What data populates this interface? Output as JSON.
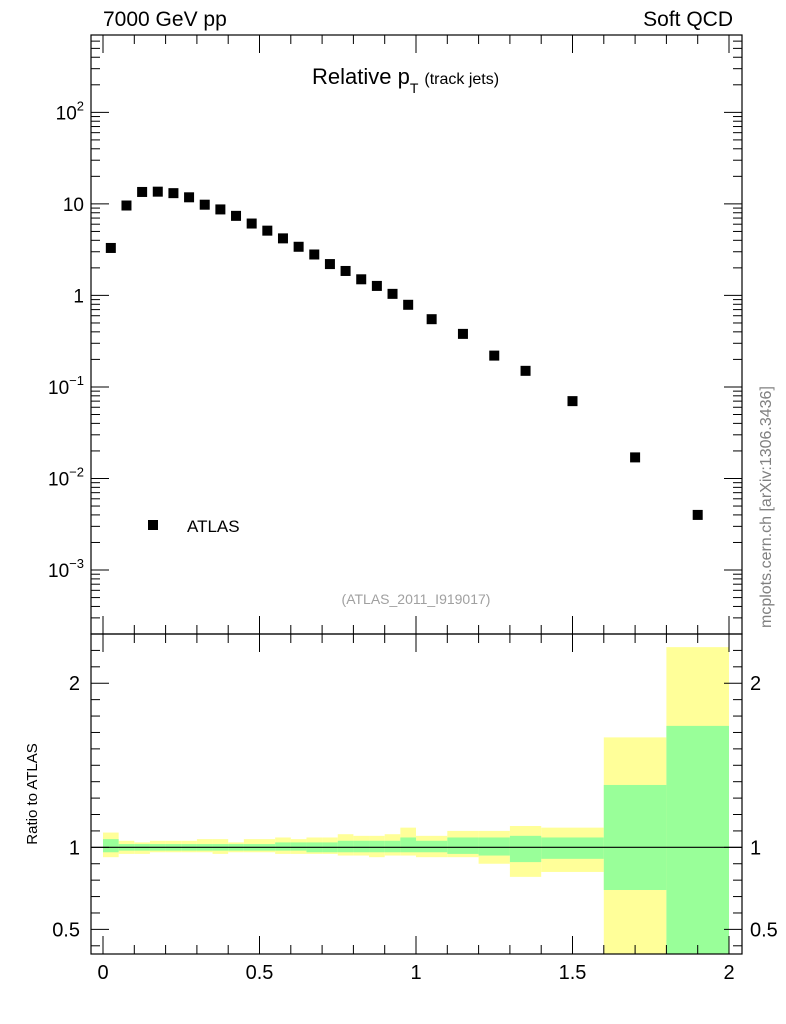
{
  "header": {
    "left": "7000 GeV pp",
    "right": "Soft QCD"
  },
  "watermark": "mcplots.cern.ch [arXiv:1306.3436]",
  "colors": {
    "data_marker": "#000000",
    "band_outer": "#ffff99",
    "band_inner": "#99ff99",
    "ref_line": "#000000"
  },
  "chart_data": [
    {
      "type": "scatter",
      "title_main": "Relative p",
      "title_sub": "T",
      "title_note": "(track jets)",
      "analysis_id": "(ATLAS_2011_I919017)",
      "legend": {
        "label": "ATLAS",
        "placement": "bottom-left"
      },
      "xlim": [
        0,
        2
      ],
      "ylim": [
        0.0002,
        700
      ],
      "log_y": true,
      "y_ticks": [
        {
          "v": 100,
          "base": "10",
          "exp": "2"
        },
        {
          "v": 10,
          "base": "10",
          "exp": ""
        },
        {
          "v": 1,
          "base": "1",
          "exp": ""
        },
        {
          "v": 0.1,
          "base": "10",
          "exp": "−1"
        },
        {
          "v": 0.01,
          "base": "10",
          "exp": "−2"
        },
        {
          "v": 0.001,
          "base": "10",
          "exp": "−3"
        }
      ],
      "series": [
        {
          "name": "ATLAS",
          "x": [
            0.025,
            0.075,
            0.125,
            0.175,
            0.225,
            0.275,
            0.325,
            0.375,
            0.425,
            0.475,
            0.525,
            0.575,
            0.625,
            0.675,
            0.725,
            0.775,
            0.825,
            0.875,
            0.925,
            0.975,
            1.05,
            1.15,
            1.25,
            1.35,
            1.5,
            1.7,
            1.9
          ],
          "y": [
            3.3,
            9.6,
            13.5,
            13.6,
            13.1,
            11.8,
            9.8,
            8.7,
            7.4,
            6.1,
            5.1,
            4.2,
            3.4,
            2.8,
            2.2,
            1.85,
            1.5,
            1.27,
            1.04,
            0.79,
            0.55,
            0.38,
            0.22,
            0.15,
            0.07,
            0.017,
            0.004
          ]
        }
      ]
    },
    {
      "type": "area",
      "ylabel": "Ratio to ATLAS",
      "xlim": [
        0,
        2
      ],
      "ylim": [
        0.35,
        2.3
      ],
      "x_tick_labels": [
        {
          "v": 0,
          "label": "0"
        },
        {
          "v": 0.5,
          "label": "0.5"
        },
        {
          "v": 1,
          "label": "1"
        },
        {
          "v": 1.5,
          "label": "1.5"
        },
        {
          "v": 2,
          "label": "2"
        }
      ],
      "y_tick_labels": [
        {
          "v": 0.5,
          "label": "0.5"
        },
        {
          "v": 1,
          "label": "1"
        },
        {
          "v": 2,
          "label": "2"
        }
      ],
      "reference": 1,
      "bin_edges": [
        0,
        0.05,
        0.1,
        0.15,
        0.2,
        0.25,
        0.3,
        0.35,
        0.4,
        0.45,
        0.5,
        0.55,
        0.6,
        0.65,
        0.7,
        0.75,
        0.8,
        0.85,
        0.9,
        0.95,
        1.0,
        1.1,
        1.2,
        1.3,
        1.4,
        1.6,
        1.8,
        2.0
      ],
      "bands": [
        {
          "name": "outer",
          "low": [
            0.94,
            0.96,
            0.96,
            0.97,
            0.97,
            0.97,
            0.97,
            0.96,
            0.97,
            0.97,
            0.97,
            0.96,
            0.96,
            0.96,
            0.96,
            0.95,
            0.95,
            0.94,
            0.95,
            0.95,
            0.94,
            0.94,
            0.9,
            0.82,
            0.85,
            0.35,
            0.35
          ],
          "high": [
            1.09,
            1.04,
            1.03,
            1.04,
            1.04,
            1.04,
            1.05,
            1.05,
            1.03,
            1.05,
            1.05,
            1.06,
            1.05,
            1.06,
            1.06,
            1.08,
            1.07,
            1.07,
            1.08,
            1.12,
            1.07,
            1.1,
            1.1,
            1.13,
            1.12,
            1.67,
            2.22
          ]
        },
        {
          "name": "inner",
          "low": [
            0.97,
            0.98,
            0.98,
            0.98,
            0.98,
            0.98,
            0.98,
            0.98,
            0.98,
            0.98,
            0.98,
            0.98,
            0.98,
            0.97,
            0.97,
            0.97,
            0.97,
            0.97,
            0.97,
            0.97,
            0.97,
            0.96,
            0.95,
            0.91,
            0.93,
            0.74,
            0.35
          ],
          "high": [
            1.05,
            1.02,
            1.02,
            1.02,
            1.02,
            1.02,
            1.02,
            1.02,
            1.02,
            1.02,
            1.02,
            1.03,
            1.03,
            1.03,
            1.03,
            1.04,
            1.04,
            1.04,
            1.04,
            1.06,
            1.04,
            1.06,
            1.06,
            1.07,
            1.06,
            1.38,
            1.74
          ]
        }
      ]
    }
  ]
}
